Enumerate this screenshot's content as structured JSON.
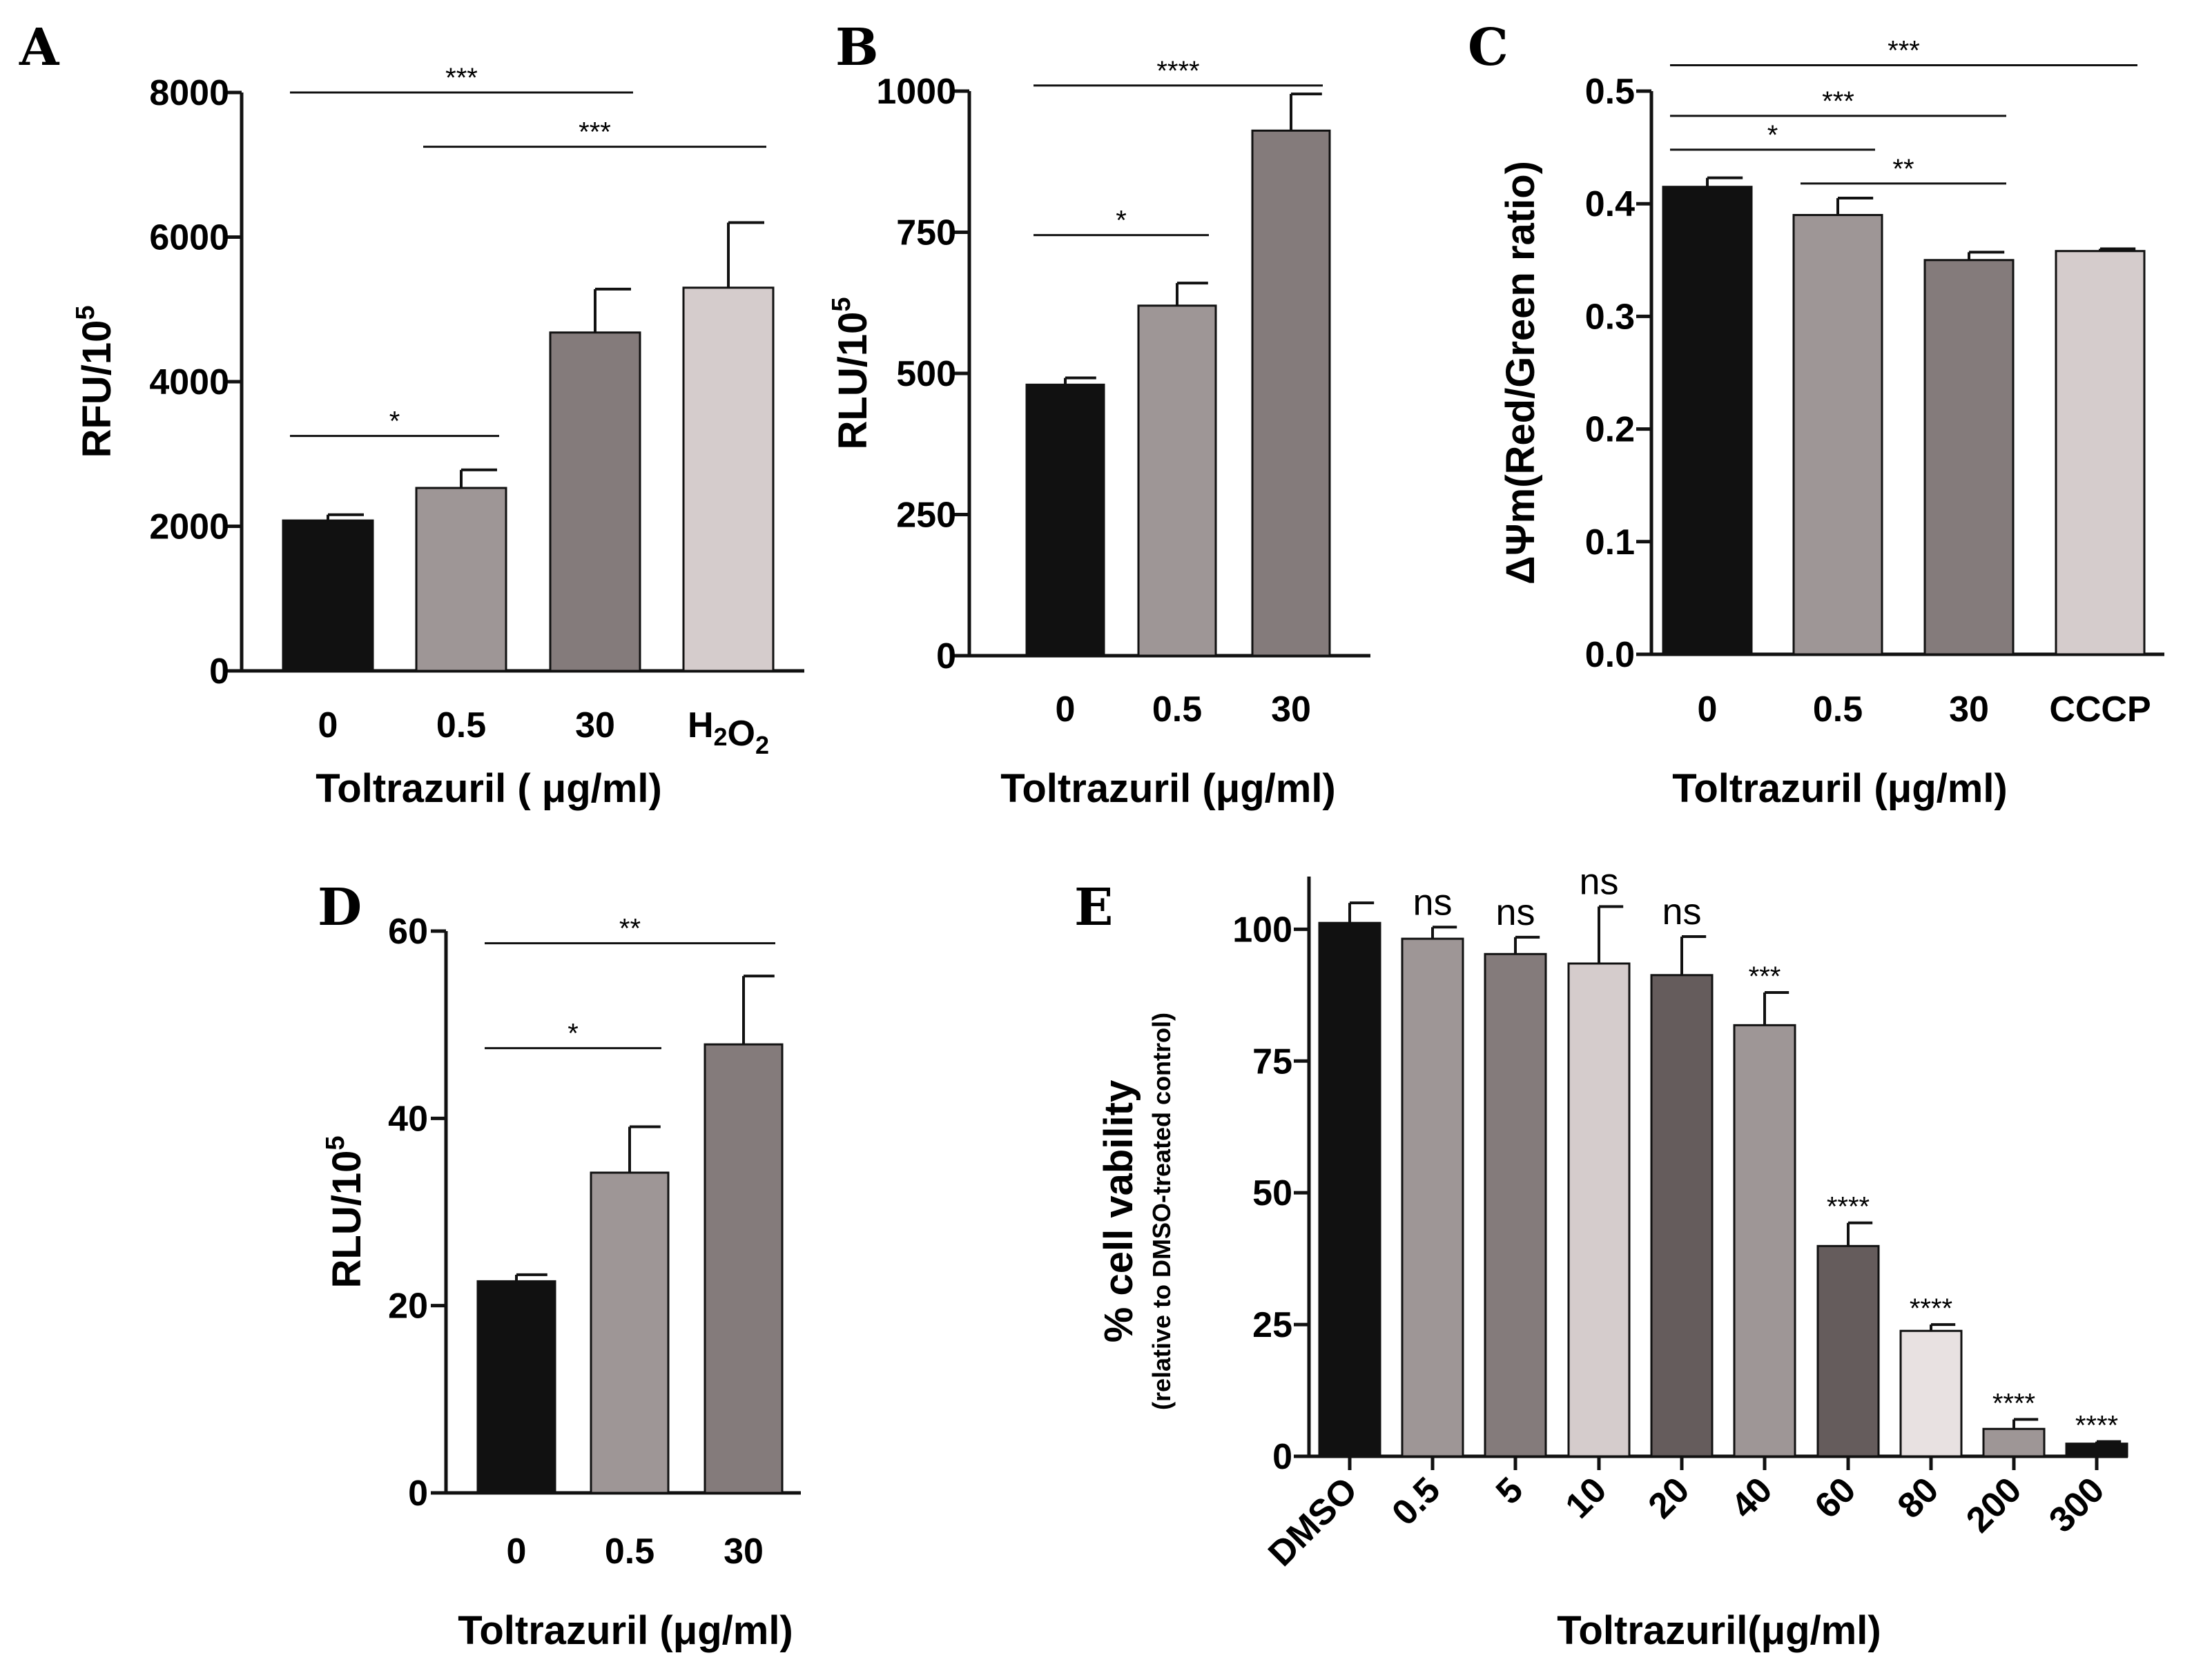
{
  "colors": {
    "black": "#111111",
    "gray_light": "#9e9696",
    "gray_mid": "#847b7b",
    "gray_pale": "#d5cccc",
    "gray_dark": "#655c5c",
    "gray_pale2": "#e8e1e1",
    "axis": "#111111"
  },
  "chart_data": [
    {
      "panel": "A",
      "type": "bar",
      "categories": [
        "0",
        "0.5",
        "30",
        "H2O2"
      ],
      "values": [
        2080,
        2530,
        4680,
        5300
      ],
      "errors": [
        80,
        250,
        600,
        900
      ],
      "bar_colors": [
        "black",
        "gray_light",
        "gray_mid",
        "gray_pale"
      ],
      "ylabel": "RFU/10",
      "ylabel_sup": "5",
      "xlabel": "Toltrazuril ( μg/ml)",
      "ylim": [
        0,
        8000
      ],
      "yticks": [
        0,
        2000,
        4000,
        6000,
        8000
      ],
      "significance": [
        {
          "from": 0,
          "to": 1,
          "y": 3250,
          "label": "*"
        },
        {
          "from": 0,
          "to": 2,
          "y": 8000,
          "label": "***"
        },
        {
          "from": 1,
          "to": 3,
          "y": 7250,
          "label": "***"
        }
      ]
    },
    {
      "panel": "B",
      "type": "bar",
      "categories": [
        "0",
        "0.5",
        "30"
      ],
      "values": [
        480,
        620,
        930
      ],
      "errors": [
        12,
        40,
        65
      ],
      "bar_colors": [
        "black",
        "gray_light",
        "gray_mid"
      ],
      "ylabel": "RLU/10",
      "ylabel_sup": "5",
      "xlabel": "Toltrazuril (μg/ml)",
      "ylim": [
        0,
        1000
      ],
      "yticks": [
        0,
        250,
        500,
        750,
        1000
      ],
      "significance": [
        {
          "from": 0,
          "to": 1,
          "y": 745,
          "label": "*"
        },
        {
          "from": 0,
          "to": 2,
          "y": 1010,
          "label": "****"
        }
      ]
    },
    {
      "panel": "C",
      "type": "bar",
      "categories": [
        "0",
        "0.5",
        "30",
        "CCCP"
      ],
      "values": [
        0.415,
        0.39,
        0.35,
        0.358
      ],
      "errors": [
        0.008,
        0.015,
        0.007,
        0.002
      ],
      "bar_colors": [
        "black",
        "gray_light",
        "gray_mid",
        "gray_pale"
      ],
      "ylabel": "ΔΨm(Red/Green ratio)",
      "xlabel": "Toltrazuril (μg/ml)",
      "ylim": [
        0,
        0.5
      ],
      "yticks": [
        "0.0",
        "0.1",
        "0.2",
        "0.3",
        "0.4",
        "0.5"
      ],
      "significance": [
        {
          "from": 0,
          "to": 1,
          "y": 0.448,
          "label": "*"
        },
        {
          "from": 0,
          "to": 2,
          "y": 0.478,
          "label": "***"
        },
        {
          "from": 0,
          "to": 3,
          "y": 0.523,
          "label": "***"
        },
        {
          "from": 1,
          "to": 2,
          "y": 0.418,
          "label": "**"
        }
      ]
    },
    {
      "panel": "D",
      "type": "bar",
      "categories": [
        "0",
        "0.5",
        "30"
      ],
      "values": [
        22.6,
        34.2,
        47.9
      ],
      "errors": [
        0.7,
        4.9,
        7.3
      ],
      "bar_colors": [
        "black",
        "gray_light",
        "gray_mid"
      ],
      "ylabel": "RLU/10",
      "ylabel_sup": "5",
      "xlabel": "Toltrazuril (μg/ml)",
      "ylim": [
        0,
        60
      ],
      "yticks": [
        0,
        20,
        40,
        60
      ],
      "significance": [
        {
          "from": 0,
          "to": 1,
          "y": 47.5,
          "label": "*"
        },
        {
          "from": 0,
          "to": 2,
          "y": 58.7,
          "label": "**"
        }
      ]
    },
    {
      "panel": "E",
      "type": "bar",
      "categories": [
        "DMSO",
        "0.5",
        "5",
        "10",
        "20",
        "40",
        "60",
        "80",
        "200",
        "300"
      ],
      "values": [
        101.2,
        98.2,
        95.3,
        93.5,
        91.3,
        81.8,
        39.9,
        23.8,
        5.2,
        2.4
      ],
      "errors": [
        3.8,
        2.2,
        3.2,
        10.8,
        7.3,
        6.2,
        4.4,
        1.2,
        1.8,
        0.4
      ],
      "bar_colors": [
        "black",
        "gray_light",
        "gray_mid",
        "gray_pale",
        "gray_dark",
        "gray_light",
        "gray_dark",
        "gray_pale2",
        "gray_light",
        "black"
      ],
      "labels": [
        "",
        "ns",
        "ns",
        "ns",
        "ns",
        "***",
        "****",
        "****",
        "****",
        "****"
      ],
      "ylabel": "% cell vability",
      "ylabel_sub": "(relative to DMSO-treated control)",
      "xlabel": "Toltrazuril(μg/ml)",
      "ylim": [
        0,
        110
      ],
      "yticks": [
        0,
        25,
        50,
        75,
        100
      ]
    }
  ]
}
